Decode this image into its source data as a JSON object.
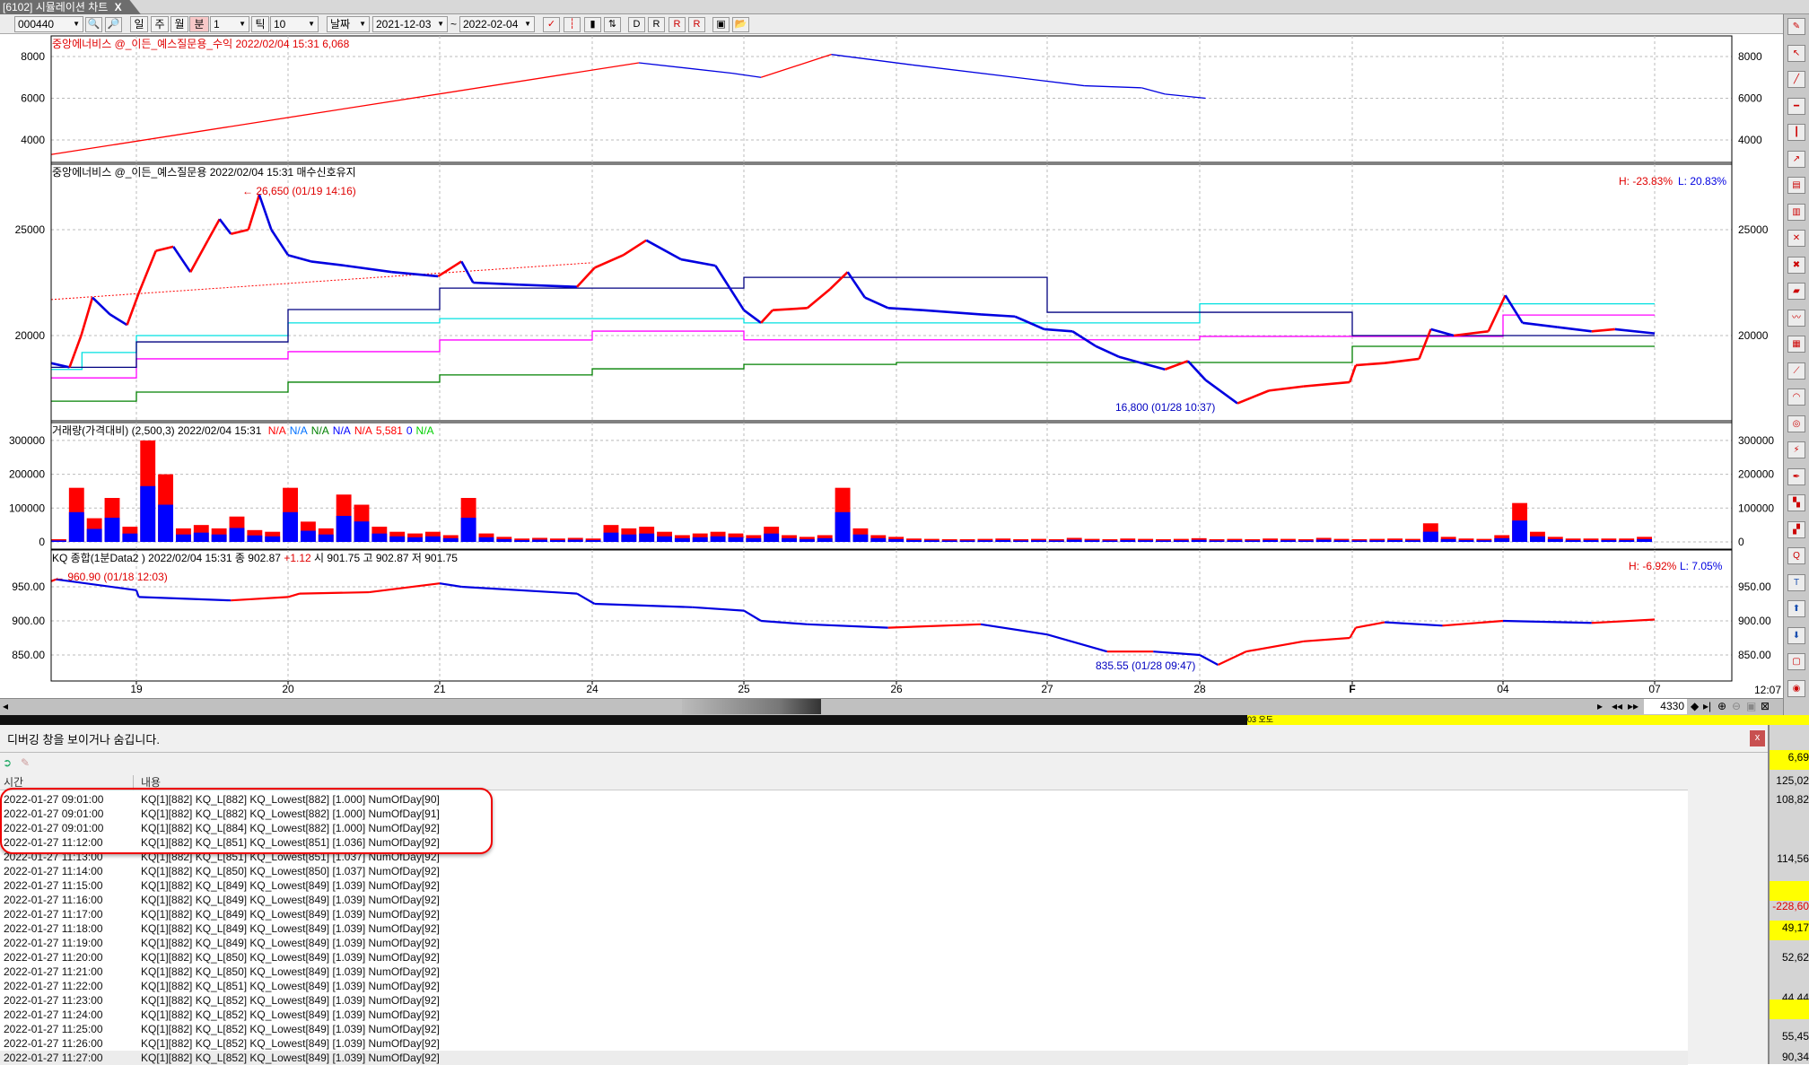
{
  "window": {
    "tab_title": "[6102] 시뮬레이션 차트",
    "tab_close": "X"
  },
  "toolbar": {
    "symbol": "000440",
    "period_buttons": [
      "일",
      "주",
      "월",
      "분"
    ],
    "active_period": "분",
    "interval": "1",
    "tick_label": "틱",
    "tick_value": "10",
    "date_mode": "날짜",
    "start_date": "2021-12-03",
    "tilde": "~",
    "end_date": "2022-02-04"
  },
  "panes": {
    "profit": {
      "header": "중앙에너비스 @_이든_예스질문용_수익 2022/02/04 15:31 6,068"
    },
    "price": {
      "header": "중앙에너비스 @_이든_예스질문용  2022/02/04 15:31 매수신호유지",
      "high_label": "H: -23.83%",
      "low_label": "L: 20.83%",
      "max_annotation": "← 26,650 (01/19 14:16)",
      "min_annotation": "16,800 (01/28 10:37)"
    },
    "volume": {
      "header": "거래량(가격대비)  (2,500,3) 2022/02/04 15:31",
      "values": [
        {
          "text": "N/A",
          "color": "#ff0000"
        },
        {
          "text": "N/A",
          "color": "#0070ff"
        },
        {
          "text": "N/A",
          "color": "#008000"
        },
        {
          "text": "N/A",
          "color": "#0000ff"
        },
        {
          "text": "N/A",
          "color": "#ff0000"
        },
        {
          "text": "5,581",
          "color": "#ff0000"
        },
        {
          "text": "0",
          "color": "#0000ff"
        },
        {
          "text": "N/A",
          "color": "#00d000"
        }
      ]
    },
    "kq": {
      "header": "KQ 종합(1분Data2 ) 2022/02/04 15:31    종 902.87",
      "change": "+1.12",
      "header_tail": "  시 901.75 고 902.87 저 901.75",
      "high_label": "H: -6.92%",
      "low_label": "L: 7.05%",
      "max_annotation": "← 960.90 (01/18 12:03)",
      "min_annotation": "835.55 (01/28 09:47)"
    }
  },
  "chart_data": [
    {
      "type": "line",
      "name": "profit",
      "yticks": [
        "8000",
        "6000",
        "4000"
      ],
      "points": [
        [
          "01/18 11:50",
          3300
        ],
        [
          "01/24 11:00",
          7700
        ],
        [
          "01/24 15:00",
          7200
        ],
        [
          "01/25 09:44",
          7000
        ],
        [
          "01/25 12:45",
          8100
        ],
        [
          "01/26 09:40",
          7600
        ],
        [
          "01/27 10:35",
          6600
        ],
        [
          "01/27 13:03",
          6500
        ],
        [
          "01/27 14:03",
          6200
        ],
        [
          "01/28 09:15",
          6000
        ]
      ]
    },
    {
      "type": "line",
      "name": "price",
      "yticks": [
        "25000",
        "20000"
      ],
      "points": [
        [
          "01/18 11:50",
          18700
        ],
        [
          "01/18 12:38",
          18500
        ],
        [
          "01/18 13:08",
          20000
        ],
        [
          "01/18 13:37",
          21800
        ],
        [
          "01/18 14:22",
          21000
        ],
        [
          "01/18 15:06",
          20500
        ],
        [
          "01/19 09:06",
          22000
        ],
        [
          "01/19 09:50",
          24000
        ],
        [
          "01/19 10:35",
          24200
        ],
        [
          "01/19 11:19",
          23000
        ],
        [
          "01/19 12:04",
          24500
        ],
        [
          "01/19 12:34",
          25500
        ],
        [
          "01/19 13:03",
          24800
        ],
        [
          "01/19 13:48",
          25000
        ],
        [
          "01/19 14:16",
          26650
        ],
        [
          "01/19 14:47",
          25000
        ],
        [
          "01/20 09:00",
          23800
        ],
        [
          "01/20 09:59",
          23500
        ],
        [
          "01/20 11:28",
          23300
        ],
        [
          "01/20 13:27",
          23000
        ],
        [
          "01/20 15:26",
          22800
        ],
        [
          "01/21 09:56",
          23500
        ],
        [
          "01/21 10:26",
          22500
        ],
        [
          "01/21 12:25",
          22400
        ],
        [
          "01/21 14:53",
          22300
        ],
        [
          "01/24 09:06",
          23200
        ],
        [
          "01/24 10:20",
          23800
        ],
        [
          "01/24 11:19",
          24500
        ],
        [
          "01/24 12:48",
          23600
        ],
        [
          "01/24 14:17",
          23300
        ],
        [
          "01/25 09:00",
          21200
        ],
        [
          "01/25 09:44",
          20600
        ],
        [
          "01/25 10:14",
          21200
        ],
        [
          "01/25 11:43",
          21300
        ],
        [
          "01/25 12:42",
          22200
        ],
        [
          "01/25 13:27",
          23000
        ],
        [
          "01/25 14:11",
          21800
        ],
        [
          "01/25 15:11",
          21300
        ],
        [
          "01/26 10:08",
          21200
        ],
        [
          "01/26 12:37",
          21000
        ],
        [
          "01/26 14:05",
          20900
        ],
        [
          "01/26 15:20",
          20300
        ],
        [
          "01/27 10:05",
          20200
        ],
        [
          "01/27 11:05",
          19500
        ],
        [
          "01/27 12:04",
          19000
        ],
        [
          "01/27 13:03",
          18700
        ],
        [
          "01/27 14:03",
          18400
        ],
        [
          "01/27 15:02",
          18800
        ],
        [
          "01/28 09:15",
          17900
        ],
        [
          "01/28 10:37",
          16800
        ],
        [
          "01/28 11:58",
          17400
        ],
        [
          "01/28 13:27",
          17600
        ],
        [
          "01/28 15:26",
          17800
        ],
        [
          "02/03 09:09",
          18600
        ],
        [
          "02/03 10:23",
          18700
        ],
        [
          "02/03 11:52",
          18900
        ],
        [
          "02/03 12:22",
          20300
        ],
        [
          "02/03 13:21",
          20000
        ],
        [
          "02/03 14:50",
          20200
        ],
        [
          "02/04 09:06",
          21900
        ],
        [
          "02/04 09:50",
          20600
        ],
        [
          "02/04 11:19",
          20400
        ],
        [
          "02/04 12:48",
          20200
        ],
        [
          "02/04 13:48",
          20300
        ],
        [
          "02/04 15:30",
          20100
        ]
      ],
      "trend_line": [
        [
          "01/18 11:50",
          21700
        ],
        [
          "01/24 09:00",
          23440
        ]
      ],
      "level_lines": [
        {
          "color": "#00e0e0",
          "steps": [
            [
              "01/18 11:50",
              18400
            ],
            [
              "01/18 13:10",
              19200
            ],
            [
              "01/19 09:00",
              20000
            ],
            [
              "01/20 09:00",
              20600
            ],
            [
              "01/21 09:00",
              20800
            ],
            [
              "01/25 09:00",
              20600
            ],
            [
              "01/28 09:00",
              21500
            ],
            [
              "02/04 15:30",
              21500
            ]
          ]
        },
        {
          "color": "#ff00ff",
          "steps": [
            [
              "01/18 11:50",
              18000
            ],
            [
              "01/19 09:00",
              18900
            ],
            [
              "01/20 09:00",
              19240
            ],
            [
              "01/21 09:00",
              19790
            ],
            [
              "01/24 09:00",
              20210
            ],
            [
              "01/25 09:00",
              19800
            ],
            [
              "01/28 09:00",
              19960
            ],
            [
              "02/04 09:00",
              20970
            ],
            [
              "02/04 15:30",
              20970
            ]
          ]
        },
        {
          "color": "#000080",
          "steps": [
            [
              "01/18 11:50",
              18500
            ],
            [
              "01/19 09:00",
              19700
            ],
            [
              "01/20 09:00",
              21230
            ],
            [
              "01/21 09:00",
              22240
            ],
            [
              "01/25 09:00",
              22750
            ],
            [
              "01/27 09:00",
              21100
            ],
            [
              "02/03 09:00",
              20000
            ],
            [
              "02/04 15:30",
              20000
            ]
          ]
        },
        {
          "color": "#008000",
          "steps": [
            [
              "01/18 11:50",
              16900
            ],
            [
              "01/19 09:00",
              17330
            ],
            [
              "01/20 09:00",
              17800
            ],
            [
              "01/21 09:00",
              18140
            ],
            [
              "01/24 09:00",
              18430
            ],
            [
              "01/25 09:00",
              18640
            ],
            [
              "01/26 09:00",
              18730
            ],
            [
              "02/03 09:00",
              19490
            ],
            [
              "02/04 15:30",
              19490
            ]
          ]
        }
      ]
    },
    {
      "type": "bar",
      "name": "volume",
      "yticks": [
        "300000",
        "200000",
        "100000",
        "0"
      ],
      "values": [
        8000,
        160000,
        70000,
        130000,
        45000,
        300000,
        200000,
        40000,
        50000,
        40000,
        75000,
        35000,
        30000,
        160000,
        60000,
        40000,
        140000,
        110000,
        45000,
        30000,
        25000,
        30000,
        20000,
        130000,
        25000,
        15000,
        10000,
        12000,
        10000,
        12000,
        10000,
        50000,
        40000,
        45000,
        30000,
        20000,
        25000,
        30000,
        25000,
        20000,
        45000,
        20000,
        15000,
        20000,
        160000,
        40000,
        20000,
        15000,
        10000,
        9000,
        8000,
        8000,
        9000,
        10000,
        8000,
        9000,
        8000,
        12000,
        9000,
        8000,
        10000,
        9000,
        8000,
        9000,
        11000,
        8000,
        9000,
        8000,
        10000,
        9000,
        8000,
        12000,
        9000,
        8000,
        9000,
        10000,
        9000,
        55000,
        15000,
        10000,
        9000,
        20000,
        115000,
        30000,
        15000,
        10000,
        10000,
        10000,
        10000,
        15000
      ]
    },
    {
      "type": "line",
      "name": "kq",
      "yticks": [
        "950.00",
        "900.00",
        "850.00"
      ],
      "points": [
        [
          "01/18 11:50",
          958
        ],
        [
          "01/18 12:03",
          960.9
        ],
        [
          "01/19 09:00",
          945
        ],
        [
          "01/19 09:06",
          935
        ],
        [
          "01/19 13:03",
          930
        ],
        [
          "01/20 09:00",
          935
        ],
        [
          "01/20 09:30",
          940
        ],
        [
          "01/20 12:28",
          942
        ],
        [
          "01/21 09:00",
          955
        ],
        [
          "01/21 09:56",
          950
        ],
        [
          "01/21 14:53",
          940
        ],
        [
          "01/24 09:06",
          925
        ],
        [
          "01/24 13:18",
          920
        ],
        [
          "01/25 09:00",
          915
        ],
        [
          "01/25 09:44",
          900
        ],
        [
          "01/25 11:43",
          895
        ],
        [
          "01/25 15:11",
          890
        ],
        [
          "01/26 12:37",
          895
        ],
        [
          "01/27 09:00",
          880
        ],
        [
          "01/27 11:34",
          855
        ],
        [
          "01/27 13:33",
          855
        ],
        [
          "01/28 09:00",
          850
        ],
        [
          "01/28 09:47",
          835.55
        ],
        [
          "01/28 10:59",
          855
        ],
        [
          "01/28 13:27",
          870
        ],
        [
          "01/28 15:26",
          875
        ],
        [
          "02/03 09:09",
          890
        ],
        [
          "02/03 10:23",
          898
        ],
        [
          "02/03 12:52",
          893
        ],
        [
          "02/04 09:00",
          900
        ],
        [
          "02/04 12:48",
          897
        ],
        [
          "02/04 15:30",
          902
        ]
      ]
    }
  ],
  "xaxis": {
    "ticks": [
      "19",
      "20",
      "21",
      "24",
      "25",
      "26",
      "27",
      "28",
      "F",
      "04",
      "07"
    ],
    "time": "12:07"
  },
  "scroll": {
    "position_value": "4330"
  },
  "debug": {
    "title": "디버깅 창을 보이거나 숨깁니다.",
    "close": "x",
    "columns": [
      "시간",
      "내용"
    ],
    "rows": [
      [
        "2022-01-27 09:01:00",
        "KQ[1][882] KQ_L[882] KQ_Lowest[882] [1.000] NumOfDay[90]"
      ],
      [
        "2022-01-27 09:01:00",
        "KQ[1][882] KQ_L[882] KQ_Lowest[882] [1.000] NumOfDay[91]"
      ],
      [
        "2022-01-27 09:01:00",
        "KQ[1][882] KQ_L[884] KQ_Lowest[882] [1.000] NumOfDay[92]"
      ],
      [
        "2022-01-27 11:12:00",
        "KQ[1][882] KQ_L[851] KQ_Lowest[851] [1.036] NumOfDay[92]"
      ],
      [
        "2022-01-27 11:13:00",
        "KQ[1][882] KQ_L[851] KQ_Lowest[851] [1.037] NumOfDay[92]"
      ],
      [
        "2022-01-27 11:14:00",
        "KQ[1][882] KQ_L[850] KQ_Lowest[850] [1.037] NumOfDay[92]"
      ],
      [
        "2022-01-27 11:15:00",
        "KQ[1][882] KQ_L[849] KQ_Lowest[849] [1.039] NumOfDay[92]"
      ],
      [
        "2022-01-27 11:16:00",
        "KQ[1][882] KQ_L[849] KQ_Lowest[849] [1.039] NumOfDay[92]"
      ],
      [
        "2022-01-27 11:17:00",
        "KQ[1][882] KQ_L[849] KQ_Lowest[849] [1.039] NumOfDay[92]"
      ],
      [
        "2022-01-27 11:18:00",
        "KQ[1][882] KQ_L[849] KQ_Lowest[849] [1.039] NumOfDay[92]"
      ],
      [
        "2022-01-27 11:19:00",
        "KQ[1][882] KQ_L[849] KQ_Lowest[849] [1.039] NumOfDay[92]"
      ],
      [
        "2022-01-27 11:20:00",
        "KQ[1][882] KQ_L[850] KQ_Lowest[849] [1.039] NumOfDay[92]"
      ],
      [
        "2022-01-27 11:21:00",
        "KQ[1][882] KQ_L[850] KQ_Lowest[849] [1.039] NumOfDay[92]"
      ],
      [
        "2022-01-27 11:22:00",
        "KQ[1][882] KQ_L[851] KQ_Lowest[849] [1.039] NumOfDay[92]"
      ],
      [
        "2022-01-27 11:23:00",
        "KQ[1][882] KQ_L[852] KQ_Lowest[849] [1.039] NumOfDay[92]"
      ],
      [
        "2022-01-27 11:24:00",
        "KQ[1][882] KQ_L[852] KQ_Lowest[849] [1.039] NumOfDay[92]"
      ],
      [
        "2022-01-27 11:25:00",
        "KQ[1][882] KQ_L[852] KQ_Lowest[849] [1.039] NumOfDay[92]"
      ],
      [
        "2022-01-27 11:26:00",
        "KQ[1][882] KQ_L[852] KQ_Lowest[849] [1.039] NumOfDay[92]"
      ],
      [
        "2022-01-27 11:27:00",
        "KQ[1][882] KQ_L[852] KQ_Lowest[849] [1.039] NumOfDay[92]"
      ]
    ]
  },
  "side_values": [
    {
      "text": "6,69",
      "highlight": true
    },
    {
      "text": "125,02"
    },
    {
      "text": "108,82"
    },
    {
      "text": "114,56"
    },
    {
      "text": "",
      "highlight": true
    },
    {
      "text": "-228,60",
      "negative": true
    },
    {
      "text": "49,17",
      "highlight": true
    },
    {
      "text": "52,62"
    },
    {
      "text": "44,44"
    },
    {
      "text": "",
      "highlight": true
    },
    {
      "text": "55,45"
    },
    {
      "text": "90,34"
    }
  ],
  "strip": {
    "text": "03 오도"
  }
}
